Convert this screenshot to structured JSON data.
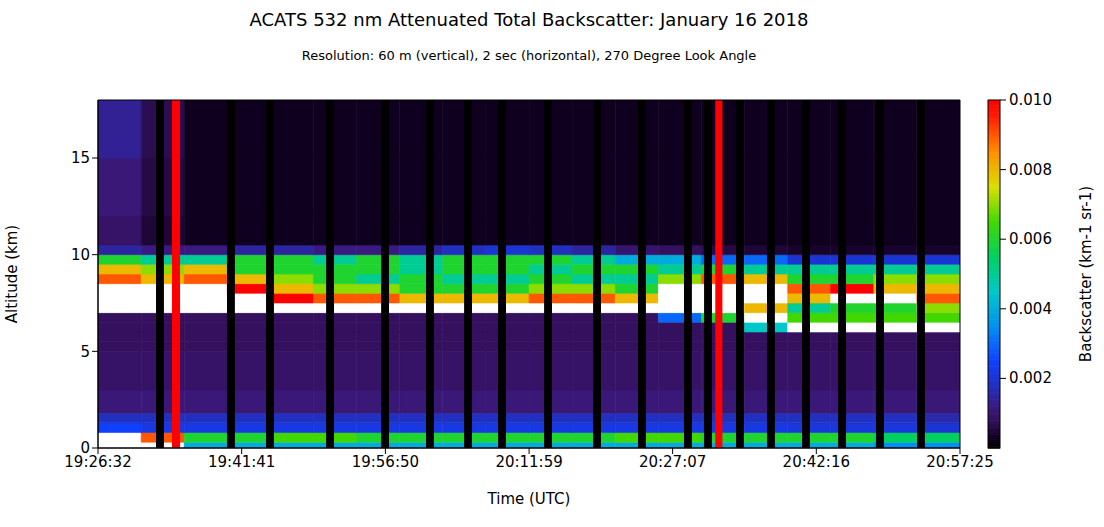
{
  "chart_data": {
    "type": "heatmap",
    "title": "ACATS 532 nm Attenuated Total Backscatter: January 16 2018",
    "subtitle": "Resolution: 60 m (vertical), 2 sec (horizontal), 270 Degree Look Angle",
    "x_label": "Time (UTC)",
    "y_label": "Altitude (km)",
    "xlim": [
      69992,
      75445
    ],
    "xticks": [
      {
        "value": 69992,
        "label": "19:26:32"
      },
      {
        "value": 70901,
        "label": "19:41:41"
      },
      {
        "value": 71810,
        "label": "19:56:50"
      },
      {
        "value": 72719,
        "label": "20:11:59"
      },
      {
        "value": 73627,
        "label": "20:27:07"
      },
      {
        "value": 74536,
        "label": "20:42:16"
      },
      {
        "value": 75445,
        "label": "20:57:25"
      }
    ],
    "ylim": [
      0,
      18
    ],
    "yticks": [
      0,
      5,
      10,
      15
    ],
    "x_edges": [
      69992,
      70265,
      70537,
      70810,
      71083,
      71355,
      71628,
      71901,
      72173,
      72446,
      72719,
      72991,
      73264,
      73537,
      73809,
      74082,
      74355,
      74627,
      74900,
      75172,
      75445
    ],
    "y_edges": [
      0,
      0.3,
      0.8,
      1.3,
      1.8,
      3,
      5,
      5.5,
      6,
      6.5,
      7,
      7.5,
      8,
      8.5,
      9,
      9.5,
      10,
      10.5,
      12,
      15,
      18
    ],
    "cells": [
      [
        0.012,
        0.011,
        0.004,
        0.004,
        0.004,
        0.004,
        0.004,
        0.004,
        0.004,
        0.004,
        0.004,
        0.004,
        0.004,
        0.004,
        0.004,
        0.004,
        0.004,
        0.004,
        0.0035,
        0.0035
      ],
      [
        0.012,
        0.009,
        0.006,
        0.006,
        0.0065,
        0.0065,
        0.006,
        0.006,
        0.006,
        0.006,
        0.006,
        0.006,
        0.0065,
        0.0065,
        0.006,
        0.006,
        0.006,
        0.006,
        0.0055,
        0.0055
      ],
      [
        0.0025,
        0.0022,
        0.0022,
        0.0022,
        0.0022,
        0.0022,
        0.0022,
        0.0022,
        0.0022,
        0.0022,
        0.0022,
        0.0022,
        0.0022,
        0.0022,
        0.0022,
        0.0022,
        0.0021,
        0.0021,
        0.0021,
        0.002
      ],
      [
        0.0018,
        0.0018,
        0.0018,
        0.0018,
        0.0018,
        0.0018,
        0.0018,
        0.0018,
        0.0018,
        0.0018,
        0.0018,
        0.0018,
        0.0018,
        0.0018,
        0.0018,
        0.0018,
        0.0018,
        0.0018,
        0.0018,
        0.0016
      ],
      [
        0.0011,
        0.0011,
        0.0011,
        0.0011,
        0.0011,
        0.0011,
        0.0011,
        0.0011,
        0.0011,
        0.0011,
        0.0011,
        0.0011,
        0.0011,
        0.0011,
        0.0011,
        0.0011,
        0.0011,
        0.0011,
        0.0011,
        0.0011
      ],
      [
        0.0009,
        0.0009,
        0.0009,
        0.0009,
        0.0009,
        0.0009,
        0.0009,
        0.0009,
        0.0009,
        0.0009,
        0.0009,
        0.0009,
        0.0009,
        0.0009,
        0.0009,
        0.0009,
        0.0009,
        0.0009,
        0.0009,
        0.0009
      ],
      [
        0.0008,
        0.0008,
        0.0008,
        0.0008,
        0.0008,
        0.0008,
        0.0008,
        0.0008,
        0.0008,
        0.0008,
        0.0008,
        0.0008,
        0.0008,
        0.0008,
        0.0008,
        0.0008,
        0.0008,
        0.0008,
        0.0008,
        0.0008
      ],
      [
        0.0008,
        0.0008,
        0.0008,
        0.0008,
        0.0008,
        0.0008,
        0.0008,
        0.0008,
        0.0008,
        0.0008,
        0.0008,
        0.0008,
        0.0008,
        0.0008,
        0.0008,
        0.0008,
        0.0008,
        0.0008,
        0.0008,
        0.0008
      ],
      [
        0.0008,
        0.0008,
        0.0008,
        0.0008,
        0.0008,
        0.0008,
        0.0008,
        0.0008,
        0.0008,
        0.0008,
        0.0008,
        0.0008,
        0.0008,
        0.0008,
        0.0008,
        0.0045,
        0.011,
        0.011,
        0.011,
        0.011
      ],
      [
        0.0008,
        0.0008,
        0.0008,
        0.0008,
        0.0008,
        0.0008,
        0.0008,
        0.0008,
        0.0008,
        0.0008,
        0.0008,
        0.0008,
        0.0008,
        0.003,
        0.006,
        0.011,
        0.0065,
        0.0065,
        0.0065,
        0.0065
      ],
      [
        0.011,
        0.011,
        0.011,
        0.011,
        0.011,
        0.011,
        0.011,
        0.011,
        0.011,
        0.011,
        0.011,
        0.011,
        0.011,
        0.011,
        0.011,
        0.008,
        0.005,
        0.006,
        0.006,
        0.007
      ],
      [
        0.011,
        0.011,
        0.011,
        0.011,
        0.01,
        0.009,
        0.009,
        0.008,
        0.008,
        0.008,
        0.009,
        0.009,
        0.008,
        0.011,
        0.012,
        0.011,
        0.008,
        0.011,
        0.011,
        0.009
      ],
      [
        0.011,
        0.011,
        0.011,
        0.01,
        0.008,
        0.007,
        0.007,
        0.006,
        0.006,
        0.006,
        0.007,
        0.007,
        0.006,
        0.011,
        0.011,
        0.011,
        0.009,
        0.01,
        0.008,
        0.008
      ],
      [
        0.009,
        0.008,
        0.009,
        0.008,
        0.007,
        0.006,
        0.005,
        0.006,
        0.005,
        0.005,
        0.006,
        0.005,
        0.005,
        0.007,
        0.009,
        0.008,
        0.006,
        0.006,
        0.007,
        0.007
      ],
      [
        0.008,
        0.007,
        0.008,
        0.006,
        0.006,
        0.006,
        0.006,
        0.005,
        0.006,
        0.006,
        0.005,
        0.006,
        0.006,
        0.005,
        0.006,
        0.005,
        0.005,
        0.005,
        0.005,
        0.005
      ],
      [
        0.006,
        0.005,
        0.005,
        0.006,
        0.006,
        0.005,
        0.006,
        0.005,
        0.006,
        0.006,
        0.006,
        0.005,
        0.004,
        0.004,
        0.003,
        0.003,
        0.002,
        0.002,
        0.002,
        0.002
      ],
      [
        0.0015,
        0.0012,
        0.0012,
        0.0015,
        0.0015,
        0.0012,
        0.0012,
        0.0015,
        0.0018,
        0.002,
        0.0018,
        0.0015,
        0.001,
        0.0008,
        0.0006,
        0.0005,
        0.0004,
        0.0004,
        0.0004,
        0.0004
      ],
      [
        0.0009,
        0.0005,
        0.0003,
        0.0003,
        0.0003,
        0.0003,
        0.0003,
        0.0003,
        0.0003,
        0.0003,
        0.0003,
        0.0003,
        0.0003,
        0.0003,
        0.0003,
        0.0003,
        0.0003,
        0.0003,
        0.0003,
        0.0003
      ],
      [
        0.0011,
        0.0006,
        0.0003,
        0.0003,
        0.0003,
        0.0003,
        0.0003,
        0.0003,
        0.0003,
        0.0003,
        0.0003,
        0.0003,
        0.0003,
        0.0003,
        0.0003,
        0.0003,
        0.0003,
        0.0003,
        0.0003,
        0.0003
      ],
      [
        0.0014,
        0.0007,
        0.0003,
        0.0003,
        0.0003,
        0.0003,
        0.0003,
        0.0003,
        0.0003,
        0.0003,
        0.0003,
        0.0003,
        0.0003,
        0.0003,
        0.0003,
        0.0003,
        0.0003,
        0.0003,
        0.0003,
        0.0003
      ]
    ],
    "colorbar": {
      "label": "Backscatter (km-1 sr-1)",
      "range": [
        0,
        0.01
      ],
      "ticks": [
        0.002,
        0.004,
        0.006,
        0.008,
        {
          "value": 0.01,
          "label": "0.010"
        }
      ]
    },
    "gaps": [
      [
        70359,
        70409
      ],
      [
        70808,
        70858
      ],
      [
        71055,
        71105
      ],
      [
        71435,
        71485
      ],
      [
        71783,
        71833
      ],
      [
        72067,
        72117
      ],
      [
        72308,
        72358
      ],
      [
        72523,
        72573
      ],
      [
        72814,
        72864
      ],
      [
        73124,
        73174
      ],
      [
        73408,
        73458
      ],
      [
        73699,
        73749
      ],
      [
        73826,
        73876
      ],
      [
        74028,
        74078
      ],
      [
        74224,
        74274
      ],
      [
        74446,
        74496
      ],
      [
        74674,
        74724
      ],
      [
        74914,
        74964
      ],
      [
        75173,
        75223
      ]
    ],
    "red_lines": [
      [
        70460,
        70511
      ],
      [
        73897,
        73942
      ]
    ]
  }
}
